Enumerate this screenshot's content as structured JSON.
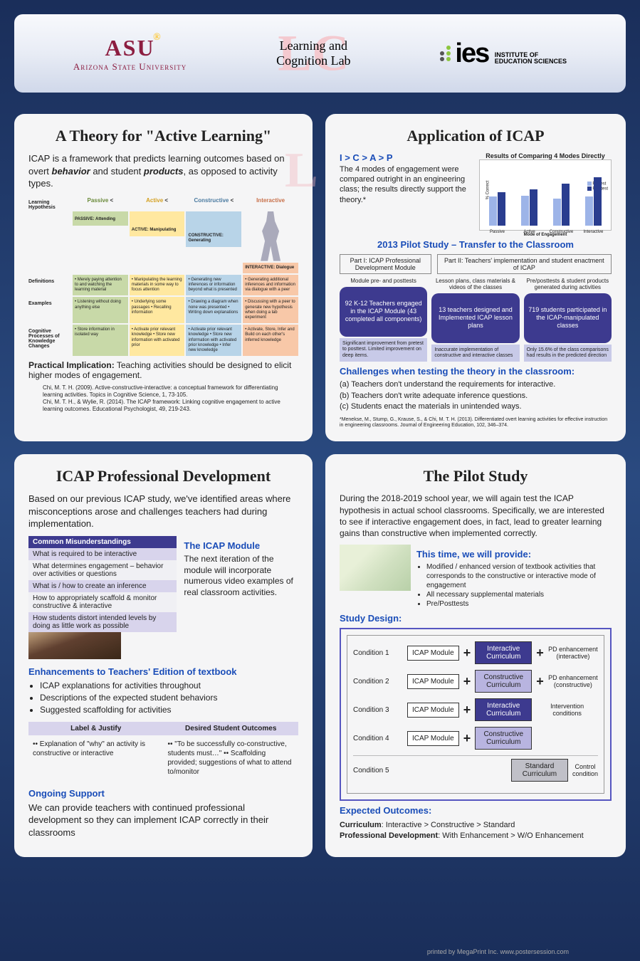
{
  "header": {
    "asu": {
      "main": "ASU",
      "sub": "Arizona State University"
    },
    "lc": {
      "line1": "Learning and",
      "line2": "Cognition Lab",
      "bg": "LC"
    },
    "ies": {
      "main": "ies",
      "sub1": "INSTITUTE OF",
      "sub2": "EDUCATION SCIENCES",
      "dot_colors": [
        "#8cc63f",
        "#555",
        "#8cc63f",
        "#555",
        "#8cc63f"
      ]
    }
  },
  "panel1": {
    "title": "A Theory for \"Active Learning\"",
    "intro_a": "ICAP is a framework that predicts learning outcomes based on overt ",
    "intro_b1": "behavior",
    "intro_mid": " and student ",
    "intro_b2": "products",
    "intro_c": ", as opposed to activity types.",
    "row_labels": [
      "Learning Hypothesis",
      "Definitions",
      "Examples",
      "Cognitive Processes of Knowledge Changes"
    ],
    "modes": [
      {
        "name": "Passive",
        "color": "#c8d9a8",
        "text_color": "#6a8a3a",
        "sub": "PASSIVE: Attending"
      },
      {
        "name": "Active",
        "color": "#ffe8a0",
        "text_color": "#d4a020",
        "sub": "ACTIVE: Manipulating"
      },
      {
        "name": "Constructive",
        "color": "#b8d4e8",
        "text_color": "#4a7aa0",
        "sub": "CONSTRUCTIVE: Generating"
      },
      {
        "name": "Interactive",
        "color": "#f8c8a8",
        "text_color": "#c8704a",
        "sub": "INTERACTIVE: Dialogue"
      }
    ],
    "lt": "<",
    "cells": {
      "passive": [
        "Merely paying attention to and watching the learning material",
        "Listening without doing anything else",
        "Store information in isolated way"
      ],
      "active": [
        "Manipulating the learning materials in some way to focus attention",
        "Underlying some passages • Recalling information",
        "Activate prior relevant knowledge • Store new information with activated prior"
      ],
      "constructive": [
        "Generating new inferences or information beyond what is presented",
        "Drawing a diagram when none was presented • Writing down explanations",
        "Activate prior relevant knowledge • Store new information with activated prior knowledge • Infer new knowledge"
      ],
      "interactive": [
        "Generating additional inferences and information via dialogue with a peer",
        "Discussing with a peer to generate new hypothesis when doing a lab experiment",
        "Activate, Store, Infer and Build on each other's inferred knowledge"
      ]
    },
    "practical_label": "Practical Implication:",
    "practical_text": " Teaching activities should be designed to elicit higher modes of engagement.",
    "refs": [
      "Chi, M. T. H. (2009). Active-constructive-interactive: a conceptual framework for differentiating learning activities. Topics in Cognitive Science, 1, 73-105.",
      "Chi, M. T. H., & Wylie, R. (2014). The ICAP framework: Linking cognitive engagement to active learning outcomes. Educational Psychologist, 49, 219-243."
    ]
  },
  "panel2": {
    "title": "Application of ICAP",
    "formula": "I > C > A > P",
    "intro": "The 4 modes of engagement were compared outright in an engineering class; the results directly support the theory.*",
    "chart": {
      "title": "Results of Comparing 4 Modes Directly",
      "ylabel": "% Correct",
      "xlabel": "Mode of Engagement",
      "ylim": [
        0,
        100
      ],
      "ytick": 25,
      "categories": [
        "Passive",
        "Active",
        "Constructive",
        "Interactive"
      ],
      "pretest": [
        48,
        50,
        45,
        48
      ],
      "posttest": [
        55,
        60,
        70,
        80
      ],
      "pretest_color": "#9db4e8",
      "posttest_color": "#2a3d8f",
      "legend": [
        "Pretest",
        "Posttest"
      ]
    },
    "pilot_h": "2013 Pilot Study – Transfer to the Classroom",
    "parts": [
      "Part I: ICAP Professional Development Module",
      "Part II: Teachers' implementation and student enactment of ICAP"
    ],
    "caps": [
      "Module pre- and posttests",
      "Lesson plans, class materials & videos of the classes",
      "Pre/posttests & student products generated during activities"
    ],
    "boxes": [
      "92 K-12 Teachers engaged in the ICAP Module (43 completed all components)",
      "13 teachers designed and Implemented ICAP lesson plans",
      "719 students participated in the ICAP-manipulated classes"
    ],
    "notes": [
      "Significant improvement from pretest to posttest. Limited improvement on deep items.",
      "Inaccurate implementation of constructive and interactive classes",
      "Only 15.6% of the class comparisons had results in the predicted direction"
    ],
    "box_color": "#3d3a8f",
    "note_color": "#c8cae8",
    "challenges_h": "Challenges when testing the theory in the classroom:",
    "challenges": [
      "(a) Teachers don't understand the requirements for interactive.",
      "(b) Teachers don't write adequate inference questions.",
      "(c) Students enact the materials in unintended ways."
    ],
    "footnote": "*Menekse, M., Stump, G., Krause, S., & Chi, M. T. H. (2013). Differentiated overt learning activities for effective instruction in engineering classrooms. Journal of Engineering Education, 102, 346–374."
  },
  "panel3": {
    "title": "ICAP Professional Development",
    "intro": "Based on our previous ICAP study, we've identified areas where misconceptions arose and challenges teachers had during implementation.",
    "mis_h": "Common Misunderstandings",
    "mis": [
      "What is required to be interactive",
      "What determines engagement – behavior over activities or questions",
      "What is / how to create an inference",
      "How to appropriately scaffold & monitor constructive & interactive",
      "How students distort intended levels by doing as little work as possible"
    ],
    "module_h": "The ICAP Module",
    "module_text": "The next iteration of the module will incorporate numerous video examples of real classroom activities.",
    "enh_h": "Enhancements to Teachers' Edition of textbook",
    "enh": [
      "ICAP explanations for activities throughout",
      "Descriptions of the expected student behaviors",
      "Suggested scaffolding for activities"
    ],
    "lj_headers": [
      "Label & Justify",
      "Desired Student Outcomes"
    ],
    "lj_cells": [
      "•• Explanation of \"why\" an activity is constructive or interactive",
      "•• \"To be successfully co-constructive, students must…\" •• Scaffolding provided; suggestions of what to attend to/monitor"
    ],
    "ongoing_h": "Ongoing Support",
    "ongoing": "We can provide teachers with continued professional development so they can implement ICAP correctly in their classrooms"
  },
  "panel4": {
    "title": "The Pilot Study",
    "intro": "During the 2018-2019 school year, we will again test the ICAP hypothesis in actual school classrooms. Specifically, we are interested to see if interactive engagement does, in fact, lead to greater learning gains than constructive when implemented correctly.",
    "provide_h": "This time, we will provide:",
    "provide": [
      "Modified / enhanced version of textbook activities that corresponds to the constructive or interactive mode of engagement",
      "All necessary supplemental materials",
      "Pre/Posttests"
    ],
    "design_h": "Study Design:",
    "conditions": [
      {
        "label": "Condition 1",
        "mod": "ICAP Module",
        "curr": "Interactive Curriculum",
        "curr_cls": "blue",
        "pd": "PD enhancement (interactive)"
      },
      {
        "label": "Condition 2",
        "mod": "ICAP Module",
        "curr": "Constructive Curriculum",
        "curr_cls": "lav",
        "pd": "PD enhancement (constructive)"
      },
      {
        "label": "Condition 3",
        "mod": "ICAP Module",
        "curr": "Interactive Curriculum",
        "curr_cls": "blue",
        "pd": ""
      },
      {
        "label": "Condition 4",
        "mod": "ICAP Module",
        "curr": "Constructive Curriculum",
        "curr_cls": "lav",
        "pd": ""
      },
      {
        "label": "Condition 5",
        "mod": "",
        "curr": "Standard Curriculum",
        "curr_cls": "gray",
        "pd": ""
      }
    ],
    "side_labels": {
      "intervention": "Intervention conditions",
      "control": "Control condition"
    },
    "expected_h": "Expected Outcomes:",
    "expected": [
      {
        "b": "Curriculum",
        "t": ":  Interactive > Constructive > Standard"
      },
      {
        "b": "Professional Development",
        "t": ":  With Enhancement > W/O Enhancement"
      }
    ]
  },
  "footer": "printed by MegaPrint Inc. www.postersession.com"
}
